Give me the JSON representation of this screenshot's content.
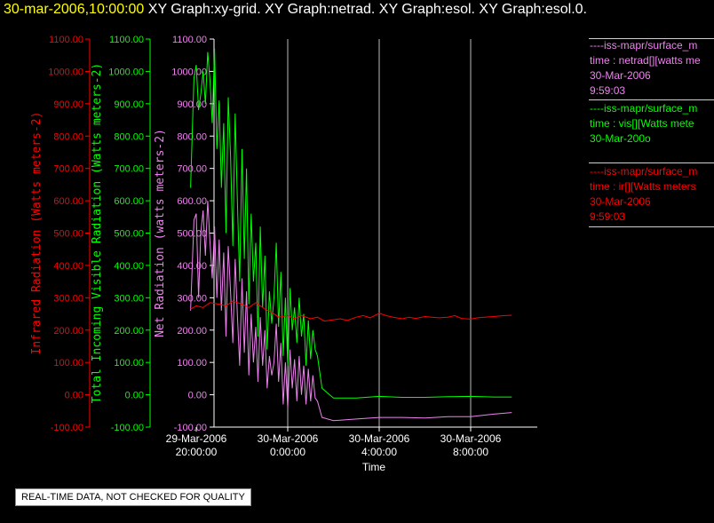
{
  "title": {
    "timestamp": "30-mar-2006,10:00:00",
    "graphs": "XY Graph:xy-grid.  XY Graph:netrad.  XY Graph:esol.  XY Graph:esol.0."
  },
  "colors": {
    "infrared": "#ff0000",
    "visible": "#00ff00",
    "net": "#ee82ee",
    "grid": "#ffffff",
    "background": "#000000"
  },
  "legend": {
    "netrad": {
      "line1": "----iss-mapr/surface_m",
      "line2": "time : netrad[][watts me",
      "line3": "30-Mar-2006",
      "line4": "9:59:03"
    },
    "vis": {
      "line1": "----iss-mapr/surface_m",
      "line2": "time : vis[][Watts mete",
      "line3": "30-Mar-200o"
    },
    "ir": {
      "line1": "----iss-mapr/surface_m",
      "line2": "time : ir[][Watts meters",
      "line3": "30-Mar-2006",
      "line4": "9:59:03"
    }
  },
  "qc_note": "REAL-TIME DATA, NOT CHECKED FOR QUALITY",
  "chart_data": {
    "type": "line",
    "xlabel": "Time",
    "x_ticks": [
      {
        "t": 20,
        "line1": "29-Mar-2006",
        "line2": "20:00:00"
      },
      {
        "t": 24,
        "line1": "30-Mar-2006",
        "line2": "0:00:00"
      },
      {
        "t": 28,
        "line1": "30-Mar-2006",
        "line2": "4:00:00"
      },
      {
        "t": 32,
        "line1": "30-Mar-2006",
        "line2": "8:00:00"
      }
    ],
    "xlim_hours": [
      19.75,
      34.0
    ],
    "y_axes": [
      {
        "id": "ir",
        "label": "Infrared Radiation (Watts meters-2)",
        "ylim": [
          -100,
          1100
        ],
        "ticks": [
          "1100.00",
          "1000.00",
          "900.00",
          "800.00",
          "700.00",
          "600.00",
          "500.00",
          "400.00",
          "300.00",
          "200.00",
          "100.00",
          "0.00",
          "-100.00"
        ]
      },
      {
        "id": "vis",
        "label": "Total Incoming Visible Radiation (Watts meters-2)",
        "ylim": [
          -100,
          1100
        ],
        "ticks": [
          "1100.00",
          "1000.00",
          "900.00",
          "800.00",
          "700.00",
          "600.00",
          "500.00",
          "400.00",
          "300.00",
          "200.00",
          "100.00",
          "0.00",
          "-100.00"
        ]
      },
      {
        "id": "net",
        "label": "Net Radiation (watts meters-2)",
        "ylim": [
          -100,
          1100
        ],
        "ticks": [
          "1100.00",
          "1000.00",
          "900.00",
          "800.00",
          "700.00",
          "600.00",
          "500.00",
          "400.00",
          "300.00",
          "200.00",
          "100.00",
          "0.00",
          "-100.00"
        ]
      }
    ],
    "series": [
      {
        "axis": "vis",
        "x": [
          19.75,
          19.9,
          20.0,
          20.1,
          20.2,
          20.3,
          20.4,
          20.5,
          20.6,
          20.7,
          20.8,
          20.9,
          21.0,
          21.1,
          21.2,
          21.3,
          21.4,
          21.5,
          21.6,
          21.7,
          21.8,
          21.9,
          22.0,
          22.1,
          22.2,
          22.3,
          22.4,
          22.5,
          22.6,
          22.7,
          22.8,
          22.9,
          23.0,
          23.1,
          23.2,
          23.3,
          23.4,
          23.5,
          23.6,
          23.7,
          23.8,
          23.9,
          24.0,
          24.1,
          24.2,
          24.3,
          24.4,
          24.5,
          24.6,
          24.7,
          24.8,
          24.9,
          25.0,
          25.1,
          25.2,
          25.3,
          25.5,
          26.0,
          27.0,
          28.0,
          29.0,
          30.0,
          31.0,
          32.0,
          33.0,
          33.8
        ],
        "y": [
          640,
          980,
          1020,
          880,
          930,
          1000,
          900,
          1060,
          970,
          840,
          1070,
          760,
          910,
          640,
          840,
          500,
          920,
          740,
          460,
          870,
          590,
          350,
          760,
          420,
          700,
          280,
          560,
          350,
          470,
          180,
          520,
          270,
          430,
          140,
          320,
          220,
          300,
          470,
          210,
          380,
          120,
          300,
          90,
          330,
          200,
          270,
          160,
          300,
          180,
          250,
          90,
          230,
          110,
          200,
          140,
          120,
          20,
          -10,
          -10,
          -5,
          -8,
          -8,
          -6,
          -5,
          -7,
          -7
        ]
      },
      {
        "axis": "net",
        "x": [
          19.75,
          19.9,
          20.0,
          20.1,
          20.2,
          20.3,
          20.4,
          20.5,
          20.6,
          20.7,
          20.8,
          20.9,
          21.0,
          21.1,
          21.2,
          21.3,
          21.4,
          21.5,
          21.6,
          21.7,
          21.8,
          21.9,
          22.0,
          22.1,
          22.2,
          22.3,
          22.4,
          22.5,
          22.6,
          22.7,
          22.8,
          22.9,
          23.0,
          23.1,
          23.2,
          23.3,
          23.4,
          23.5,
          23.6,
          23.7,
          23.8,
          23.9,
          24.0,
          24.1,
          24.2,
          24.3,
          24.4,
          24.5,
          24.6,
          24.7,
          24.8,
          24.9,
          25.0,
          25.1,
          25.2,
          25.3,
          25.5,
          26.0,
          27.0,
          28.0,
          29.0,
          30.0,
          31.0,
          32.0,
          33.0,
          33.8
        ],
        "y": [
          260,
          540,
          560,
          300,
          500,
          570,
          430,
          600,
          470,
          360,
          520,
          300,
          480,
          260,
          440,
          180,
          460,
          320,
          160,
          420,
          240,
          90,
          360,
          130,
          320,
          60,
          250,
          100,
          210,
          40,
          240,
          90,
          200,
          20,
          120,
          60,
          100,
          220,
          40,
          160,
          -30,
          100,
          -40,
          140,
          20,
          110,
          -20,
          120,
          0,
          90,
          -30,
          80,
          -20,
          60,
          -10,
          -20,
          -70,
          -80,
          -75,
          -70,
          -70,
          -72,
          -68,
          -68,
          -60,
          -55
        ]
      },
      {
        "axis": "ir",
        "x": [
          19.75,
          20.0,
          20.3,
          20.6,
          21.0,
          21.3,
          21.6,
          22.0,
          22.3,
          22.6,
          23.0,
          23.3,
          23.6,
          24.0,
          24.3,
          24.6,
          25.0,
          25.3,
          25.6,
          26.0,
          26.3,
          26.6,
          27.0,
          27.3,
          27.6,
          28.0,
          28.3,
          28.6,
          29.0,
          29.3,
          29.6,
          30.0,
          30.3,
          30.6,
          31.0,
          31.3,
          31.6,
          32.0,
          32.3,
          32.6,
          33.0,
          33.3,
          33.8
        ],
        "y": [
          265,
          275,
          270,
          285,
          280,
          275,
          290,
          280,
          270,
          285,
          265,
          255,
          240,
          245,
          235,
          245,
          235,
          240,
          228,
          232,
          235,
          230,
          240,
          245,
          238,
          252,
          245,
          240,
          235,
          240,
          236,
          242,
          240,
          238,
          240,
          245,
          236,
          234,
          238,
          240,
          242,
          244,
          246
        ]
      }
    ]
  }
}
